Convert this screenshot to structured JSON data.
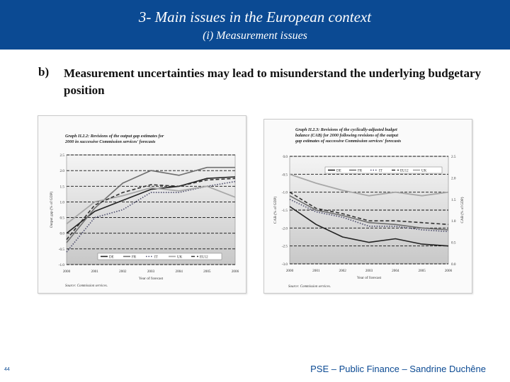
{
  "slide": {
    "title": "3- Main issues in the European context",
    "subtitle": "(i) Measurement issues",
    "bullet": "b)",
    "heading": "Measurement uncertainties may lead to misunderstand the underlying budgetary position",
    "page_number": "44",
    "footer": "PSE – Public Finance – Sandrine Duchêne"
  },
  "colors": {
    "header_bg": "#0b4a93",
    "header_text": "#ffffff",
    "footer_text": "#0b4a93"
  },
  "chart_data": [
    {
      "type": "line",
      "title": "Graph II.2.2: Revisions of the output gap estimates for 2000 in successive Commission services' forecasts",
      "ylabel": "Output gap (% of GDP)",
      "xlabel": "Year of forecast",
      "source": "Source: Commission services.",
      "x": [
        "2000",
        "2001",
        "2002",
        "2003",
        "2004",
        "2005",
        "2006"
      ],
      "y_ticks": [
        "2.5",
        "2.0",
        "1.5",
        "1.0",
        "0.5",
        "0.0",
        "-0.5",
        "-1.0"
      ],
      "ylim": [
        -1.0,
        2.5
      ],
      "series": [
        {
          "name": "DE",
          "style": "solid-dark",
          "values": [
            0.0,
            0.7,
            1.05,
            1.4,
            1.5,
            1.75,
            1.8
          ]
        },
        {
          "name": "FR",
          "style": "solid-gray",
          "values": [
            -0.3,
            0.8,
            1.6,
            2.0,
            1.85,
            2.1,
            2.1
          ]
        },
        {
          "name": "IT",
          "style": "dotted",
          "values": [
            -0.6,
            0.5,
            0.75,
            1.3,
            1.3,
            1.5,
            1.65
          ]
        },
        {
          "name": "UK",
          "style": "solid-light",
          "values": [
            0.3,
            1.0,
            1.2,
            1.45,
            1.35,
            1.5,
            1.15
          ]
        },
        {
          "name": "EU12",
          "style": "dashed",
          "values": [
            -0.2,
            0.9,
            1.3,
            1.55,
            1.5,
            1.7,
            1.75
          ]
        }
      ]
    },
    {
      "type": "line",
      "title": "Graph II.2.3: Revisions of the cyclically-adjusted budget balance (CAB) for 2000 following revisions of the output gap estimates of successive Commission services' forecasts",
      "ylabel": "CAB (% of GDP)",
      "y2label": "CAB (% of GDP)",
      "xlabel": "Year of forecast",
      "source": "Source: Commission services.",
      "x": [
        "2000",
        "2001",
        "2002",
        "2003",
        "2004",
        "2005",
        "2006"
      ],
      "y_ticks": [
        "0.0",
        "-0.5",
        "-1.0",
        "-1.5",
        "-2.0",
        "-2.5",
        "-3.0"
      ],
      "y2_ticks": [
        "2.5",
        "2.0",
        "1.5",
        "1.0",
        "0.5",
        "0.0"
      ],
      "ylim": [
        -3.0,
        0.0
      ],
      "series": [
        {
          "name": "DE",
          "style": "solid-dark",
          "values": [
            -1.4,
            -1.9,
            -2.25,
            -2.4,
            -2.3,
            -2.45,
            -2.5
          ]
        },
        {
          "name": "FR",
          "style": "solid-gray",
          "values": [
            -1.1,
            -1.5,
            -1.65,
            -1.85,
            -1.9,
            -2.0,
            -2.05
          ]
        },
        {
          "name": "IT",
          "style": "dotted",
          "values": [
            -1.2,
            -1.55,
            -1.7,
            -1.95,
            -1.95,
            -2.05,
            -2.1
          ]
        },
        {
          "name": "EU12",
          "style": "dashed",
          "values": [
            -1.0,
            -1.45,
            -1.6,
            -1.8,
            -1.8,
            -1.85,
            -1.9
          ]
        },
        {
          "name": "UK",
          "style": "solid-light",
          "values": [
            -0.5,
            -0.75,
            -0.95,
            -1.1,
            -1.0,
            -1.1,
            -1.0
          ]
        }
      ]
    }
  ]
}
